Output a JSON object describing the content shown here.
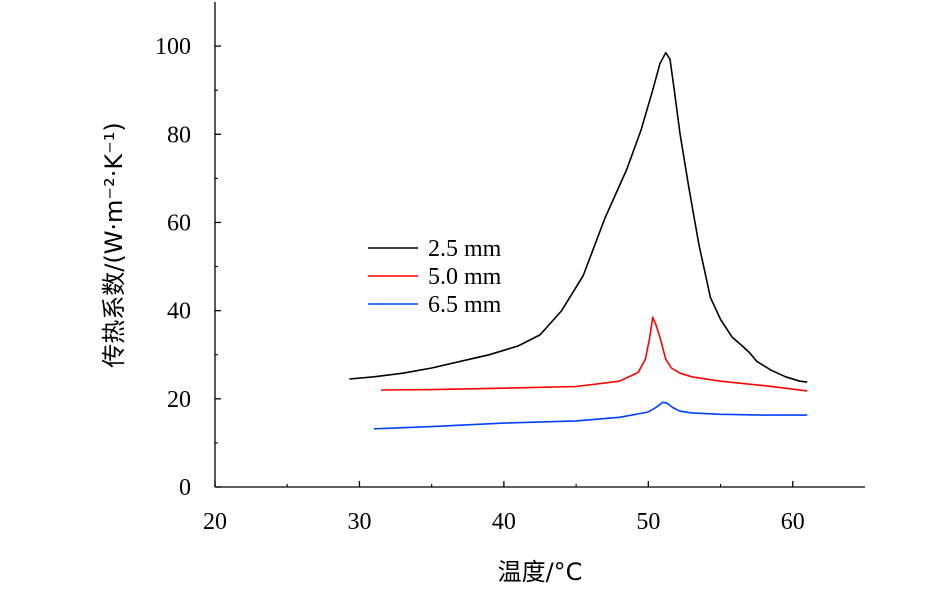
{
  "chart_data": {
    "type": "line",
    "title": "",
    "xlabel": "温度/°C",
    "ylabel": "传热系数/(W·m⁻²·K⁻¹)",
    "xlim": [
      20,
      65
    ],
    "ylim": [
      0,
      110
    ],
    "xticks": [
      20,
      30,
      40,
      50,
      60
    ],
    "yticks": [
      0,
      20,
      40,
      60,
      80,
      100
    ],
    "grid": false,
    "legend_position": "center-left",
    "series": [
      {
        "name": "2.5 mm",
        "color": "#000000",
        "x": [
          29.3,
          31,
          33,
          35,
          37,
          39,
          41,
          42.5,
          44,
          45.5,
          47,
          48.5,
          49.5,
          50.3,
          50.8,
          51.2,
          51.5,
          51.8,
          52.2,
          52.8,
          53.5,
          54.3,
          55,
          55.8,
          56.5,
          57,
          57.5,
          58.5,
          59.5,
          60.5,
          61
        ],
        "values": [
          24.5,
          25,
          25.8,
          27,
          28.5,
          30,
          32,
          34.5,
          40,
          48,
          61,
          72,
          81,
          90,
          96,
          98.5,
          97,
          90,
          80,
          68,
          55,
          43,
          38,
          34,
          32,
          30.5,
          28.5,
          26.5,
          25,
          24,
          23.8
        ]
      },
      {
        "name": "5.0 mm",
        "color": "#ff0000",
        "x": [
          31.5,
          35,
          40,
          45,
          48,
          49.3,
          49.8,
          50.1,
          50.3,
          50.5,
          50.8,
          51.2,
          51.6,
          52.2,
          53,
          55,
          58,
          61
        ],
        "values": [
          22,
          22.1,
          22.4,
          22.8,
          24,
          26,
          29,
          34,
          38.5,
          37,
          34,
          29,
          27,
          25.8,
          25,
          24,
          23,
          21.8
        ]
      },
      {
        "name": "6.5 mm",
        "color": "#0040ff",
        "x": [
          31,
          35,
          40,
          45,
          48,
          50,
          50.6,
          51,
          51.3,
          51.7,
          52.2,
          53,
          55,
          58,
          61
        ],
        "values": [
          13.2,
          13.7,
          14.5,
          15,
          15.8,
          17,
          18.2,
          19.2,
          19,
          18,
          17.2,
          16.8,
          16.5,
          16.3,
          16.3
        ]
      }
    ]
  }
}
